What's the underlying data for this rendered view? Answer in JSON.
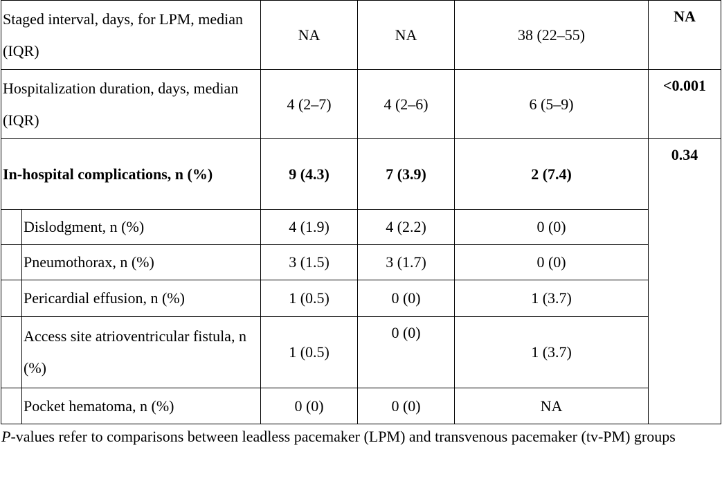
{
  "table": {
    "rows": [
      [
        "Staged interval, days, for LPM, median (IQR)",
        "NA",
        "NA",
        "38 (22–55)",
        "NA"
      ],
      [
        "Hospitalization duration, days, median (IQR)",
        "4 (2–7)",
        "4 (2–6)",
        "6 (5–9)",
        "<0.001"
      ],
      [
        "In-hospital complications, n (%)",
        "9 (4.3)",
        "7 (3.9)",
        "2 (7.4)",
        "0.34"
      ],
      [
        "Dislodgment, n (%)",
        "4 (1.9)",
        "4 (2.2)",
        "0 (0)"
      ],
      [
        "Pneumothorax, n (%)",
        "3 (1.5)",
        "3 (1.7)",
        "0 (0)"
      ],
      [
        "Pericardial effusion, n (%)",
        "1 (0.5)",
        "0 (0)",
        "1 (3.7)"
      ],
      [
        "Access site atrioventricular fistula, n (%)",
        "1 (0.5)",
        "0 (0)",
        "1 (3.7)"
      ],
      [
        "Pocket hematoma, n (%)",
        "0 (0)",
        "0 (0)",
        "NA"
      ]
    ]
  },
  "footnote": {
    "italic": "P",
    "text": "-values refer to comparisons between leadless pacemaker (LPM) and transvenous pacemaker (tv-PM) groups"
  }
}
